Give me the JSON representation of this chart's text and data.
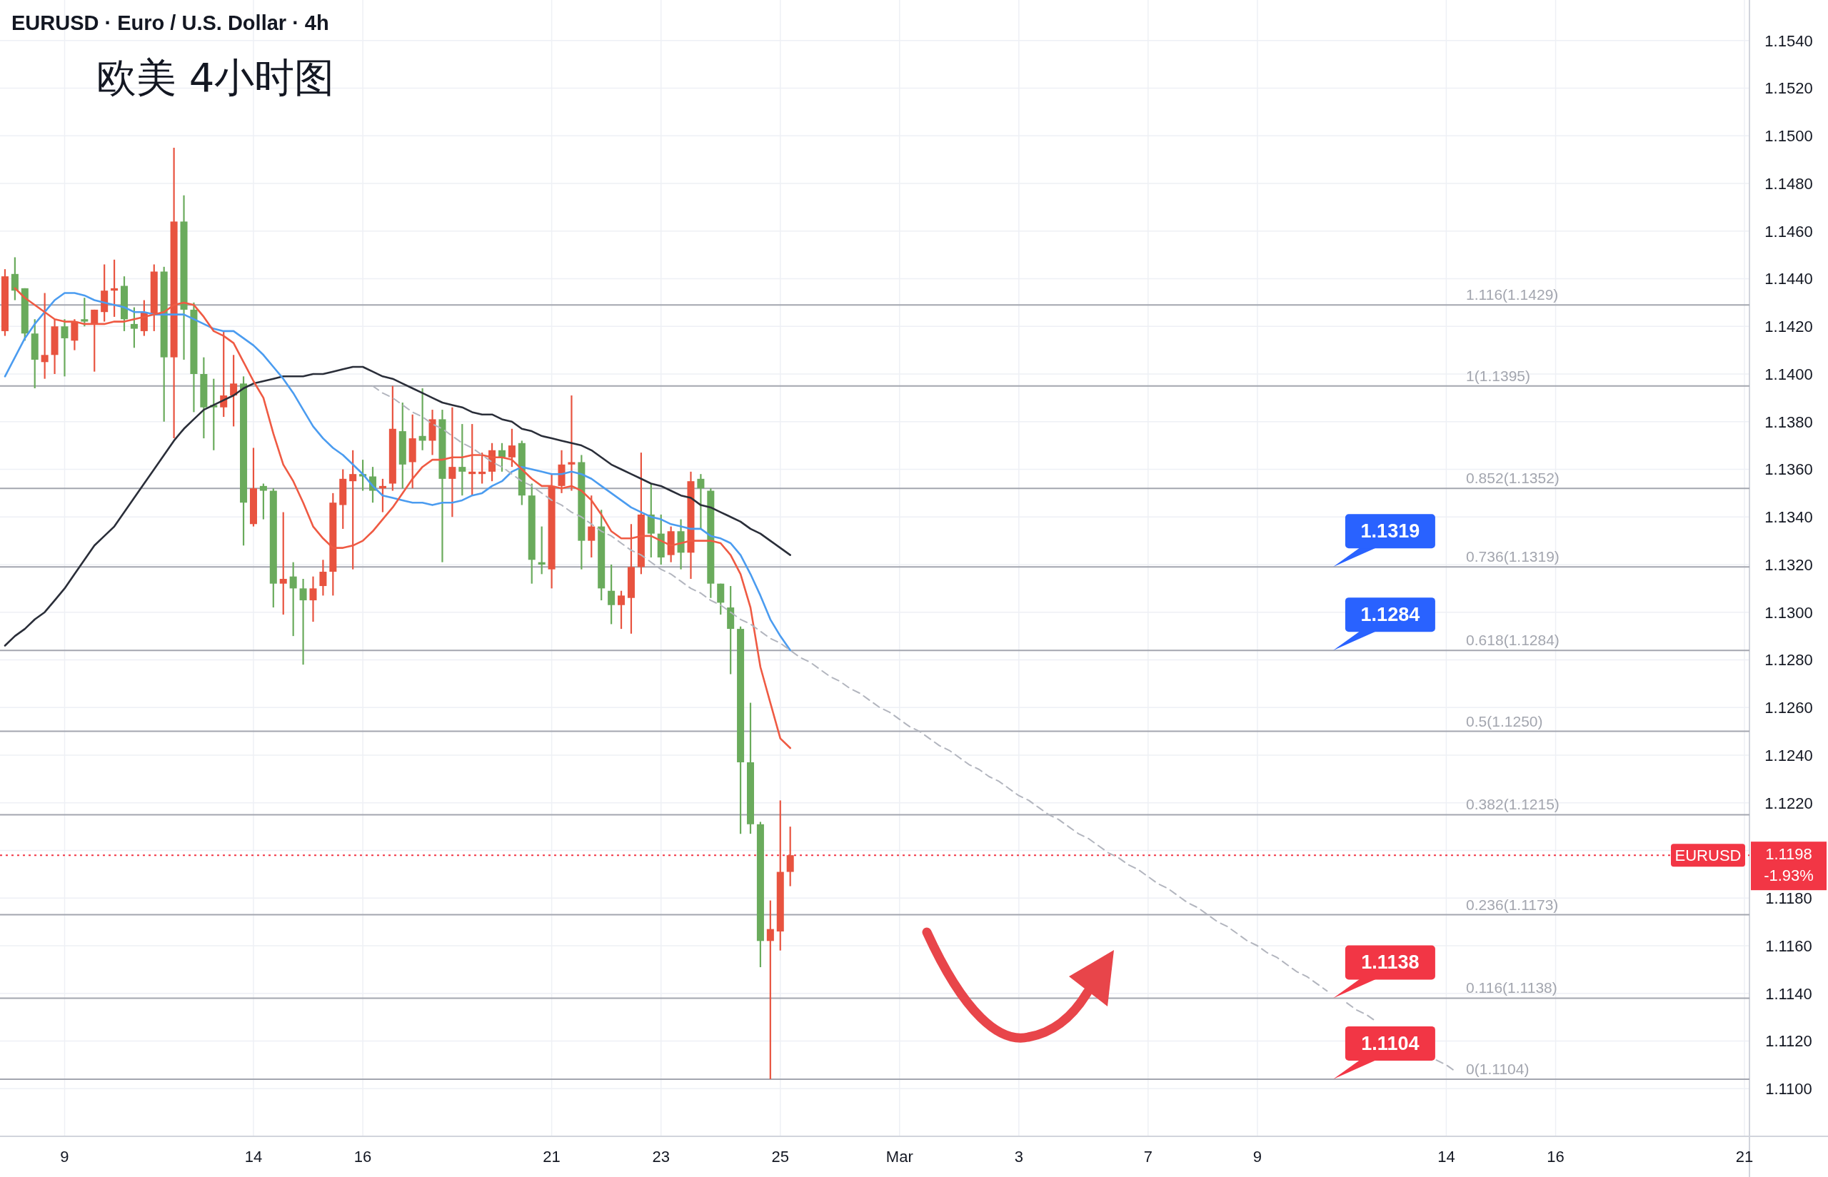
{
  "chart_data": {
    "type": "candlestick",
    "title": "EURUSD · Euro / U.S. Dollar · 4h",
    "subtitle": "欧美 4小时图",
    "categories": [
      null,
      null,
      null,
      null,
      null,
      null,
      "9",
      null,
      null,
      null,
      null,
      null,
      null,
      null,
      null,
      null,
      null,
      null,
      null,
      null,
      null,
      null,
      null,
      null,
      null,
      "14",
      null,
      null,
      null,
      null,
      null,
      null,
      null,
      null,
      null,
      null,
      "16",
      null,
      null,
      null,
      null,
      null,
      null,
      null,
      null,
      null,
      null,
      null,
      null,
      null,
      null,
      null,
      null,
      null,
      null,
      "21",
      null,
      null,
      null,
      null,
      null,
      null,
      null,
      null,
      null,
      null,
      "23",
      null,
      null,
      null,
      null,
      null,
      null,
      null,
      null,
      null,
      null,
      null,
      "25",
      null,
      null,
      null,
      null,
      null,
      null,
      null,
      null,
      null,
      null,
      null,
      "Mar",
      null,
      null,
      null,
      null,
      null,
      null,
      null,
      null,
      null,
      null,
      null,
      "3",
      null,
      null,
      null,
      null,
      null,
      null,
      null,
      null,
      null,
      null,
      null,
      null,
      "7",
      null,
      null,
      null,
      null,
      null,
      null,
      null,
      null,
      null,
      null,
      "9",
      null,
      null,
      null,
      null,
      null,
      null,
      null,
      null,
      null,
      null,
      null,
      null,
      null,
      null,
      null,
      null,
      null,
      null,
      "14",
      null,
      null,
      null,
      null,
      null,
      null,
      null,
      null,
      null,
      null,
      "16",
      null,
      null,
      null,
      null,
      null,
      null,
      null,
      null,
      null,
      null,
      null,
      null,
      null,
      null,
      null,
      null,
      null,
      null,
      "21"
    ],
    "ohlc": [
      [
        1.1418,
        1.1444,
        1.1416,
        1.1441
      ],
      [
        1.1442,
        1.1449,
        1.1431,
        1.1435
      ],
      [
        1.1436,
        1.1436,
        1.1414,
        1.1417
      ],
      [
        1.1417,
        1.1423,
        1.1394,
        1.1406
      ],
      [
        1.1405,
        1.1434,
        1.1398,
        1.1408
      ],
      [
        1.1408,
        1.1423,
        1.14,
        1.142
      ],
      [
        1.142,
        1.1423,
        1.1399,
        1.1415
      ],
      [
        1.1414,
        1.1423,
        1.141,
        1.1422
      ],
      [
        1.1423,
        1.1432,
        1.142,
        1.1422
      ],
      [
        1.1421,
        1.1427,
        1.1401,
        1.1427
      ],
      [
        1.1426,
        1.1446,
        1.1422,
        1.1435
      ],
      [
        1.1435,
        1.1448,
        1.1424,
        1.1436
      ],
      [
        1.1437,
        1.1441,
        1.1418,
        1.1423
      ],
      [
        1.1421,
        1.1428,
        1.1411,
        1.1419
      ],
      [
        1.1418,
        1.1431,
        1.1416,
        1.1426
      ],
      [
        1.1425,
        1.1446,
        1.1418,
        1.1443
      ],
      [
        1.1443,
        1.1445,
        1.138,
        1.1407
      ],
      [
        1.1407,
        1.1495,
        1.1373,
        1.1464
      ],
      [
        1.1464,
        1.1475,
        1.1406,
        1.1427
      ],
      [
        1.1427,
        1.143,
        1.1384,
        1.14
      ],
      [
        1.14,
        1.1407,
        1.1373,
        1.1386
      ],
      [
        1.1387,
        1.1398,
        1.1368,
        1.1386
      ],
      [
        1.1386,
        1.1418,
        1.1382,
        1.1391
      ],
      [
        1.1391,
        1.1408,
        1.1378,
        1.1396
      ],
      [
        1.1396,
        1.1399,
        1.1328,
        1.1346
      ],
      [
        1.1337,
        1.1369,
        1.1336,
        1.1352
      ],
      [
        1.1353,
        1.1354,
        1.1339,
        1.1351
      ],
      [
        1.1351,
        1.1352,
        1.1302,
        1.1312
      ],
      [
        1.1312,
        1.1342,
        1.1299,
        1.1314
      ],
      [
        1.1315,
        1.1321,
        1.129,
        1.131
      ],
      [
        1.131,
        1.1314,
        1.1278,
        1.1305
      ],
      [
        1.1305,
        1.1315,
        1.1296,
        1.131
      ],
      [
        1.1311,
        1.1322,
        1.1307,
        1.1317
      ],
      [
        1.1317,
        1.135,
        1.1307,
        1.1346
      ],
      [
        1.1345,
        1.136,
        1.1335,
        1.1356
      ],
      [
        1.1355,
        1.1368,
        1.1318,
        1.1358
      ],
      [
        1.1358,
        1.1364,
        1.1351,
        1.1357
      ],
      [
        1.1357,
        1.1361,
        1.1346,
        1.1351
      ],
      [
        1.1352,
        1.1356,
        1.1342,
        1.1353
      ],
      [
        1.1354,
        1.1395,
        1.1351,
        1.1377
      ],
      [
        1.1376,
        1.1388,
        1.1352,
        1.1362
      ],
      [
        1.1363,
        1.1383,
        1.1352,
        1.1373
      ],
      [
        1.1374,
        1.1394,
        1.1368,
        1.1372
      ],
      [
        1.1372,
        1.1385,
        1.1366,
        1.1381
      ],
      [
        1.1381,
        1.1385,
        1.1321,
        1.1356
      ],
      [
        1.1356,
        1.1386,
        1.134,
        1.1361
      ],
      [
        1.1361,
        1.1379,
        1.1349,
        1.1359
      ],
      [
        1.1358,
        1.1379,
        1.1349,
        1.1359
      ],
      [
        1.1358,
        1.1367,
        1.1354,
        1.1359
      ],
      [
        1.1359,
        1.1371,
        1.1355,
        1.1368
      ],
      [
        1.1368,
        1.1371,
        1.1359,
        1.1365
      ],
      [
        1.1365,
        1.1377,
        1.1361,
        1.137
      ],
      [
        1.1371,
        1.1372,
        1.1345,
        1.1349
      ],
      [
        1.1349,
        1.1354,
        1.1312,
        1.1322
      ],
      [
        1.1321,
        1.1336,
        1.1316,
        1.132
      ],
      [
        1.1318,
        1.1358,
        1.131,
        1.1353
      ],
      [
        1.1353,
        1.1368,
        1.135,
        1.1362
      ],
      [
        1.1362,
        1.1391,
        1.1351,
        1.1363
      ],
      [
        1.1363,
        1.1366,
        1.1318,
        1.133
      ],
      [
        1.133,
        1.1349,
        1.1323,
        1.1336
      ],
      [
        1.1336,
        1.1343,
        1.1305,
        1.131
      ],
      [
        1.1309,
        1.132,
        1.1295,
        1.1303
      ],
      [
        1.1303,
        1.1309,
        1.1293,
        1.1307
      ],
      [
        1.1306,
        1.1337,
        1.1291,
        1.1319
      ],
      [
        1.1319,
        1.1367,
        1.1316,
        1.1341
      ],
      [
        1.1341,
        1.1354,
        1.1323,
        1.1333
      ],
      [
        1.1333,
        1.1341,
        1.132,
        1.1323
      ],
      [
        1.1324,
        1.1336,
        1.1321,
        1.1334
      ],
      [
        1.1334,
        1.1339,
        1.1318,
        1.1325
      ],
      [
        1.1325,
        1.1359,
        1.1314,
        1.1355
      ],
      [
        1.1356,
        1.1358,
        1.1335,
        1.1352
      ],
      [
        1.1351,
        1.1352,
        1.1306,
        1.1312
      ],
      [
        1.1312,
        1.1312,
        1.1299,
        1.1304
      ],
      [
        1.1302,
        1.1311,
        1.1274,
        1.1293
      ],
      [
        1.1293,
        1.1294,
        1.1207,
        1.1237
      ],
      [
        1.1237,
        1.1262,
        1.1207,
        1.1211
      ],
      [
        1.1211,
        1.1212,
        1.1151,
        1.1162
      ],
      [
        1.1162,
        1.1179,
        1.1104,
        1.1167
      ],
      [
        1.1166,
        1.1221,
        1.1158,
        1.1191
      ],
      [
        1.1191,
        1.121,
        1.1185,
        1.1198
      ],
      null,
      null,
      null,
      null,
      null,
      null,
      null,
      null,
      null,
      null,
      null,
      null,
      null,
      null,
      null,
      null,
      null,
      null,
      null,
      null,
      null,
      null,
      null,
      null,
      null,
      null,
      null,
      null,
      null,
      null,
      null,
      null,
      null,
      null,
      null,
      null,
      null,
      null,
      null,
      null,
      null,
      null,
      null,
      null,
      null,
      null,
      null,
      null,
      null,
      null,
      null,
      null,
      null,
      null,
      null,
      null,
      null,
      null,
      null,
      null,
      null,
      null,
      null,
      null,
      null,
      null,
      null,
      null,
      null,
      null,
      null,
      null,
      null,
      null,
      null,
      null,
      null,
      null,
      null,
      null,
      null,
      null,
      null,
      null,
      null,
      null,
      null,
      null,
      null,
      null,
      null,
      null,
      null,
      null,
      null,
      null
    ],
    "series": [
      {
        "type": "line",
        "color": "#2a2e39",
        "values": [
          1.1286,
          1.129,
          1.1293,
          1.1297,
          1.13,
          1.1305,
          1.131,
          1.1316,
          1.1322,
          1.1328,
          1.1332,
          1.1336,
          1.1342,
          1.1348,
          1.1354,
          1.136,
          1.1366,
          1.1372,
          1.1377,
          1.1381,
          1.1385,
          1.1387,
          1.1389,
          1.1391,
          1.1394,
          1.1396,
          1.1397,
          1.1398,
          1.1399,
          1.1399,
          1.1399,
          1.14,
          1.14,
          1.1401,
          1.1402,
          1.1403,
          1.1403,
          1.1401,
          1.1399,
          1.1398,
          1.1396,
          1.1394,
          1.1392,
          1.139,
          1.1388,
          1.1387,
          1.1386,
          1.1384,
          1.1383,
          1.1383,
          1.1381,
          1.138,
          1.1377,
          1.1376,
          1.1374,
          1.1373,
          1.1372,
          1.1371,
          1.137,
          1.1368,
          1.1365,
          1.1362,
          1.136,
          1.1358,
          1.1356,
          1.1354,
          1.1353,
          1.1351,
          1.1349,
          1.1348,
          1.1345,
          1.1344,
          1.1342,
          1.134,
          1.1338,
          1.1335,
          1.1333,
          1.133,
          1.1327,
          1.1324,
          null,
          null,
          null,
          null,
          null,
          null,
          null,
          null,
          null,
          null,
          null,
          null,
          null,
          null,
          null,
          null,
          null,
          null,
          null,
          null,
          null,
          null,
          null,
          null,
          null,
          null,
          null,
          null,
          null,
          null,
          null,
          null,
          null,
          null,
          null,
          null,
          null,
          null,
          null,
          null,
          null,
          null,
          null,
          null,
          null,
          null,
          null,
          null,
          null,
          null,
          null,
          null,
          null,
          null,
          null,
          null,
          null,
          null,
          null,
          null,
          null,
          null,
          null,
          null,
          null,
          null,
          null,
          null,
          null,
          null,
          null,
          null,
          null,
          null,
          null,
          null,
          null,
          null,
          null,
          null,
          null,
          null,
          null,
          null,
          null,
          null,
          null,
          null,
          null,
          null,
          null,
          null,
          null,
          null,
          null,
          null
        ]
      },
      {
        "type": "line",
        "color": "#4b9cf0",
        "values": [
          1.1399,
          1.1407,
          1.1415,
          1.1421,
          1.1426,
          1.1431,
          1.1434,
          1.1434,
          1.1433,
          1.1431,
          1.143,
          1.1429,
          1.1428,
          1.1426,
          1.1426,
          1.1425,
          1.1425,
          1.1425,
          1.1425,
          1.1423,
          1.1421,
          1.1419,
          1.1418,
          1.1418,
          1.1415,
          1.1412,
          1.1408,
          1.1403,
          1.1398,
          1.1392,
          1.1385,
          1.1378,
          1.1373,
          1.1369,
          1.1366,
          1.1362,
          1.1358,
          1.1353,
          1.1349,
          1.1348,
          1.1347,
          1.1346,
          1.1346,
          1.1345,
          1.1346,
          1.1346,
          1.1347,
          1.1349,
          1.135,
          1.1353,
          1.1355,
          1.1359,
          1.1361,
          1.136,
          1.1359,
          1.1358,
          1.1358,
          1.1359,
          1.1358,
          1.1356,
          1.1353,
          1.135,
          1.1347,
          1.1344,
          1.1342,
          1.134,
          1.1339,
          1.1337,
          1.1336,
          1.1335,
          1.1335,
          1.1332,
          1.1331,
          1.1329,
          1.1324,
          1.1316,
          1.1307,
          1.1297,
          1.129,
          1.1284,
          null,
          null,
          null,
          null,
          null,
          null,
          null,
          null,
          null,
          null,
          null,
          null,
          null,
          null,
          null,
          null,
          null,
          null,
          null,
          null,
          null,
          null,
          null,
          null,
          null,
          null,
          null,
          null,
          null,
          null,
          null,
          null,
          null,
          null,
          null,
          null,
          null,
          null,
          null,
          null,
          null,
          null,
          null,
          null,
          null,
          null,
          null,
          null,
          null,
          null,
          null,
          null,
          null,
          null,
          null,
          null,
          null,
          null,
          null,
          null,
          null,
          null,
          null,
          null,
          null,
          null,
          null,
          null,
          null,
          null,
          null,
          null,
          null,
          null,
          null,
          null,
          null,
          null,
          null,
          null,
          null,
          null,
          null,
          null,
          null,
          null,
          null,
          null,
          null,
          null,
          null,
          null,
          null,
          null,
          null,
          null
        ]
      },
      {
        "type": "line",
        "color": "#ef5a43",
        "values": [
          null,
          1.1436,
          1.1432,
          1.1429,
          1.1426,
          1.1423,
          1.1422,
          1.1422,
          1.1421,
          1.1421,
          1.1421,
          1.1422,
          1.1422,
          1.1423,
          1.1424,
          1.1425,
          1.1426,
          1.1429,
          1.143,
          1.1429,
          1.1424,
          1.1418,
          1.1416,
          1.1413,
          1.1405,
          1.1397,
          1.139,
          1.1375,
          1.1362,
          1.1355,
          1.1346,
          1.1336,
          1.1331,
          1.1327,
          1.1327,
          1.1328,
          1.133,
          1.1334,
          1.1339,
          1.1344,
          1.135,
          1.1356,
          1.1361,
          1.1364,
          1.1364,
          1.1365,
          1.1365,
          1.1366,
          1.1366,
          1.1365,
          1.1365,
          1.1364,
          1.136,
          1.1356,
          1.1353,
          1.1353,
          1.1352,
          1.1353,
          1.1351,
          1.1347,
          1.1341,
          1.1334,
          1.1331,
          1.1331,
          1.1332,
          1.1332,
          1.133,
          1.1328,
          1.1329,
          1.133,
          1.133,
          1.133,
          1.1329,
          1.1324,
          1.1316,
          1.1302,
          1.1277,
          1.1262,
          1.1247,
          1.1243,
          null,
          null,
          null,
          null,
          null,
          null,
          null,
          null,
          null,
          null,
          null,
          null,
          null,
          null,
          null,
          null,
          null,
          null,
          null,
          null,
          null,
          null,
          null,
          null,
          null,
          null,
          null,
          null,
          null,
          null,
          null,
          null,
          null,
          null,
          null,
          null,
          null,
          null,
          null,
          null,
          null,
          null,
          null,
          null,
          null,
          null,
          null,
          null,
          null,
          null,
          null,
          null,
          null,
          null,
          null,
          null,
          null,
          null,
          null,
          null,
          null,
          null,
          null,
          null,
          null,
          null,
          null,
          null,
          null,
          null,
          null,
          null,
          null,
          null,
          null,
          null,
          null,
          null,
          null,
          null,
          null,
          null,
          null,
          null,
          null,
          null,
          null,
          null,
          null,
          null,
          null,
          null,
          null,
          null,
          null,
          null
        ]
      },
      {
        "type": "line",
        "color": "#b2b5be",
        "line_style": "dashed",
        "values": [
          null,
          null,
          null,
          null,
          null,
          null,
          null,
          null,
          null,
          null,
          null,
          null,
          null,
          null,
          null,
          null,
          null,
          null,
          null,
          null,
          null,
          null,
          null,
          null,
          null,
          null,
          null,
          null,
          null,
          null,
          null,
          null,
          null,
          null,
          null,
          null,
          null,
          1.1395,
          1.1392,
          1.139,
          1.1387,
          1.1384,
          1.1382,
          1.1379,
          1.1377,
          1.1374,
          1.1371,
          1.1369,
          1.1366,
          1.1363,
          1.1361,
          1.1358,
          1.1355,
          1.1353,
          1.135,
          1.1347,
          1.1345,
          1.1342,
          1.134,
          1.1337,
          1.1334,
          1.1332,
          1.1329,
          1.1326,
          1.1324,
          1.1321,
          1.1318,
          1.1316,
          1.1313,
          1.131,
          1.1308,
          1.1305,
          1.1303,
          1.13,
          1.1297,
          1.1295,
          1.1292,
          1.1289,
          1.1287,
          1.1284,
          1.1281,
          1.1279,
          1.1276,
          1.1273,
          1.1271,
          1.1268,
          1.1266,
          1.1263,
          1.126,
          1.1258,
          1.1255,
          1.1252,
          1.125,
          1.1247,
          1.1244,
          1.1242,
          1.1239,
          1.1236,
          1.1234,
          1.1231,
          1.1229,
          1.1226,
          1.1223,
          1.1221,
          1.1218,
          1.1215,
          1.1213,
          1.121,
          1.1207,
          1.1205,
          1.1202,
          1.1199,
          1.1197,
          1.1194,
          1.1192,
          1.1189,
          1.1186,
          1.1184,
          1.1181,
          1.1178,
          1.1176,
          1.1173,
          1.117,
          1.1168,
          1.1165,
          1.1162,
          1.116,
          1.1157,
          1.1155,
          1.1152,
          1.1149,
          1.1147,
          1.1144,
          1.1141,
          null,
          1.1136,
          1.1133,
          1.1131,
          1.1128,
          null,
          null,
          null,
          null,
          null,
          1.1112,
          1.111,
          1.1107,
          null,
          null,
          null,
          null,
          null,
          null,
          null,
          null,
          null,
          null,
          null,
          null,
          null,
          null,
          null,
          null,
          null,
          null,
          null,
          null,
          null,
          null,
          null,
          null,
          null,
          null,
          null,
          null,
          null
        ]
      }
    ],
    "ref_lines": [
      {
        "axis": "y",
        "value": 1.1429,
        "label": "1.116(1.1429)",
        "color": "#a3a6af"
      },
      {
        "axis": "y",
        "value": 1.1395,
        "label": "1(1.1395)",
        "color": "#a3a6af"
      },
      {
        "axis": "y",
        "value": 1.1352,
        "label": "0.852(1.1352)",
        "color": "#a3a6af"
      },
      {
        "axis": "y",
        "value": 1.1319,
        "label": "0.736(1.1319)",
        "color": "#a3a6af"
      },
      {
        "axis": "y",
        "value": 1.1284,
        "label": "0.618(1.1284)",
        "color": "#a3a6af"
      },
      {
        "axis": "y",
        "value": 1.125,
        "label": "0.5(1.1250)",
        "color": "#a3a6af"
      },
      {
        "axis": "y",
        "value": 1.1215,
        "label": "0.382(1.1215)",
        "color": "#a3a6af"
      },
      {
        "axis": "y",
        "value": 1.1173,
        "label": "0.236(1.1173)",
        "color": "#a3a6af"
      },
      {
        "axis": "y",
        "value": 1.1138,
        "label": "0.116(1.1138)",
        "color": "#a3a6af"
      },
      {
        "axis": "y",
        "value": 1.1104,
        "label": "0(1.1104)",
        "color": "#a3a6af"
      },
      {
        "axis": "y",
        "value": 1.1198,
        "label": "EURUSD",
        "color": "#f23645",
        "line_style": "dotted"
      }
    ],
    "annotations": [
      {
        "text": "1.1319",
        "y": 1.1319
      },
      {
        "text": "1.1284",
        "y": 1.1284
      },
      {
        "text": "1.1138",
        "y": 1.1138
      },
      {
        "text": "1.1104",
        "y": 1.1104
      },
      "1.1198",
      "-1.93%"
    ],
    "ylim": [
      1.108,
      1.1557
    ],
    "yticks": [
      {
        "value": 1.11,
        "label": "1.1100"
      },
      {
        "value": 1.112,
        "label": "1.1120"
      },
      {
        "value": 1.114,
        "label": "1.1140"
      },
      {
        "value": 1.116,
        "label": "1.1160"
      },
      {
        "value": 1.118,
        "label": "1.1180"
      },
      {
        "value": 1.12,
        "label": null
      },
      {
        "value": 1.122,
        "label": "1.1220"
      },
      {
        "value": 1.124,
        "label": "1.1240"
      },
      {
        "value": 1.126,
        "label": "1.1260"
      },
      {
        "value": 1.128,
        "label": "1.1280"
      },
      {
        "value": 1.13,
        "label": "1.1300"
      },
      {
        "value": 1.132,
        "label": "1.1320"
      },
      {
        "value": 1.134,
        "label": "1.1340"
      },
      {
        "value": 1.136,
        "label": "1.1360"
      },
      {
        "value": 1.138,
        "label": "1.1380"
      },
      {
        "value": 1.14,
        "label": "1.1400"
      },
      {
        "value": 1.142,
        "label": "1.1420"
      },
      {
        "value": 1.144,
        "label": "1.1440"
      },
      {
        "value": 1.146,
        "label": "1.1460"
      },
      {
        "value": 1.148,
        "label": "1.1480"
      },
      {
        "value": 1.15,
        "label": "1.1500"
      },
      {
        "value": 1.152,
        "label": "1.1520"
      },
      {
        "value": 1.154,
        "label": "1.1540"
      }
    ],
    "grid": true
  }
}
